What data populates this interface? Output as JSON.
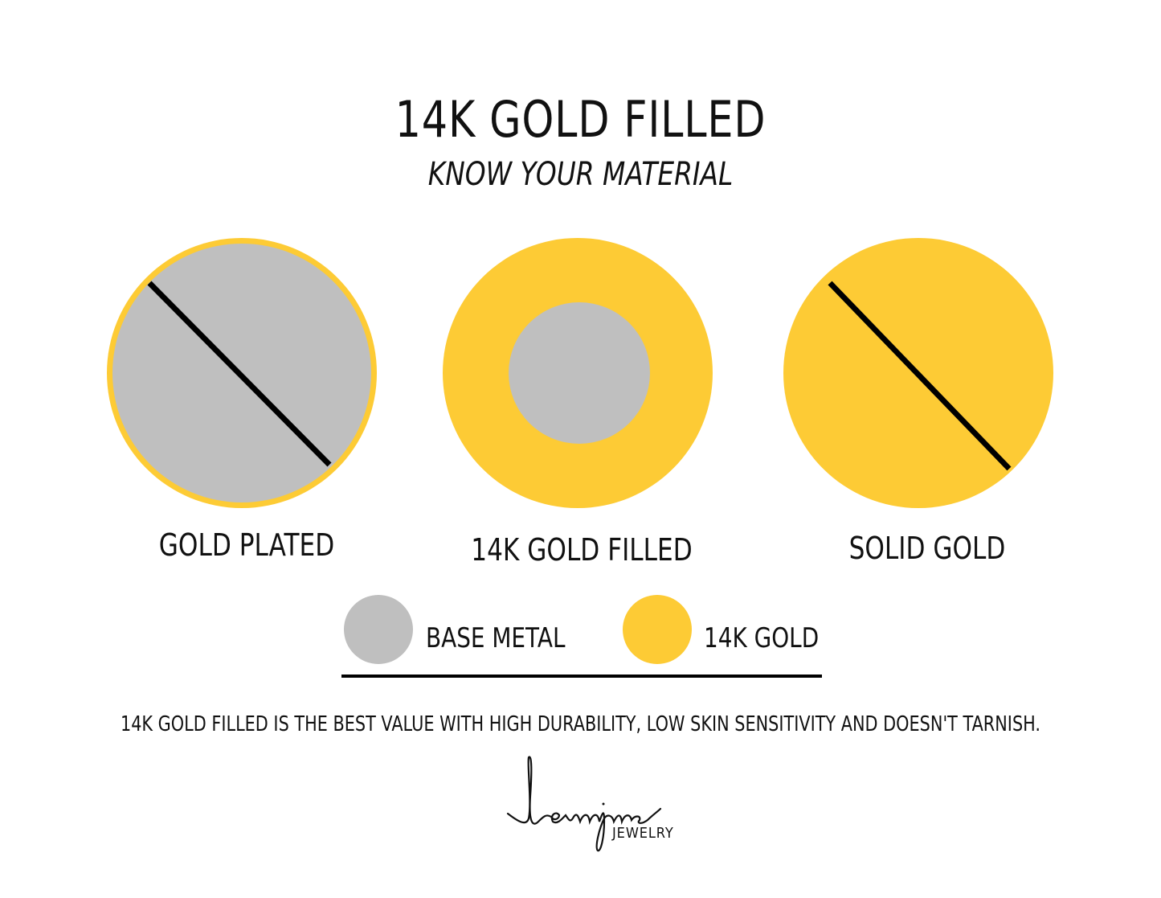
{
  "title": "14K GOLD FILLED",
  "subtitle": "KNOW YOUR MATERIAL",
  "colors": {
    "gold": "#FDCB35",
    "base_metal": "#BFBFBF",
    "line": "#000000"
  },
  "materials": [
    {
      "label": "GOLD PLATED",
      "depiction": "base metal with thin gold outline, crossed out"
    },
    {
      "label": "14K GOLD FILLED",
      "depiction": "thick gold layer around base metal core"
    },
    {
      "label": "SOLID GOLD",
      "depiction": "solid gold, crossed out"
    }
  ],
  "legend": [
    {
      "label": "BASE METAL",
      "color": "#BFBFBF"
    },
    {
      "label": "14K GOLD",
      "color": "#FDCB35"
    }
  ],
  "footer": "14K GOLD FILLED IS THE BEST VALUE WITH HIGH DURABILITY, LOW SKIN SENSITIVITY AND DOESN'T TARNISH.",
  "brand": {
    "name": "leannjane",
    "sub": "JEWELRY"
  }
}
